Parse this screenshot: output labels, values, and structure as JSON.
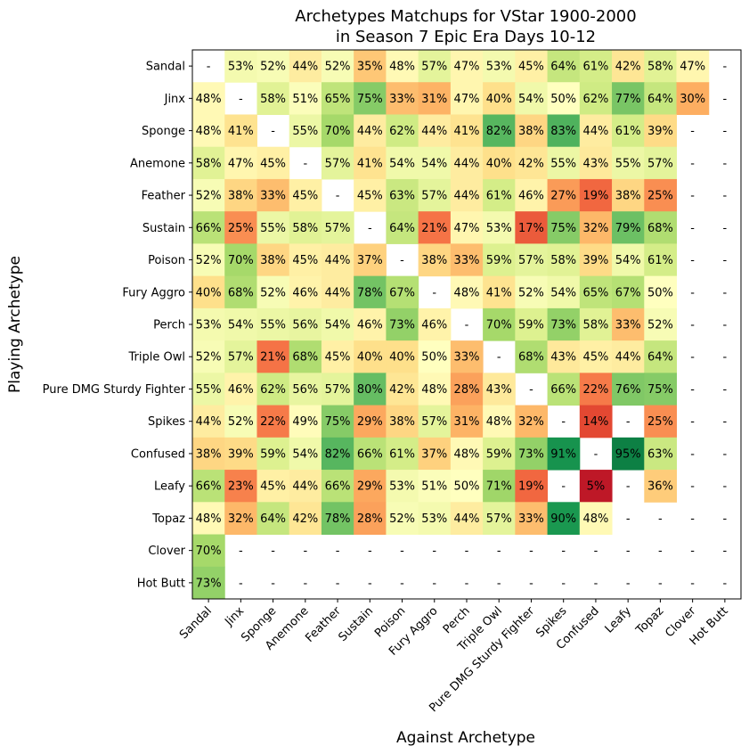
{
  "chart_data": {
    "type": "heatmap",
    "title": [
      "Archetypes Matchups for VStar 1900-2000",
      "in Season 7 Epic Era Days 10-12"
    ],
    "xlabel": "Against Archetype",
    "ylabel": "Playing Archetype",
    "rows": [
      "Sandal",
      "Jinx",
      "Sponge",
      "Anemone",
      "Feather",
      "Sustain",
      "Poison",
      "Fury Aggro",
      "Perch",
      "Triple Owl",
      "Pure DMG Sturdy Fighter",
      "Spikes",
      "Confused",
      "Leafy",
      "Topaz",
      "Clover",
      "Hot Butt"
    ],
    "columns": [
      "Sandal",
      "Jinx",
      "Sponge",
      "Anemone",
      "Feather",
      "Sustain",
      "Poison",
      "Fury Aggro",
      "Perch",
      "Triple Owl",
      "Pure DMG Sturdy Fighter",
      "Spikes",
      "Confused",
      "Leafy",
      "Topaz",
      "Clover",
      "Hot Butt"
    ],
    "value_unit": "%",
    "missing_label": "-",
    "colormap": "RdYlGn",
    "color_range": [
      0,
      100
    ],
    "values": [
      [
        null,
        53,
        52,
        44,
        52,
        35,
        48,
        57,
        47,
        53,
        45,
        64,
        61,
        42,
        58,
        47,
        null
      ],
      [
        48,
        null,
        58,
        51,
        65,
        75,
        33,
        31,
        47,
        40,
        54,
        50,
        62,
        77,
        64,
        30,
        null
      ],
      [
        48,
        41,
        null,
        55,
        70,
        44,
        62,
        44,
        41,
        82,
        38,
        83,
        44,
        61,
        39,
        null,
        null
      ],
      [
        58,
        47,
        45,
        null,
        57,
        41,
        54,
        54,
        44,
        40,
        42,
        55,
        43,
        55,
        57,
        null,
        null
      ],
      [
        52,
        38,
        33,
        45,
        null,
        45,
        63,
        57,
        44,
        61,
        46,
        27,
        19,
        38,
        25,
        null,
        null
      ],
      [
        66,
        25,
        55,
        58,
        57,
        null,
        64,
        21,
        47,
        53,
        17,
        75,
        32,
        79,
        68,
        null,
        null
      ],
      [
        52,
        70,
        38,
        45,
        44,
        37,
        null,
        38,
        33,
        59,
        57,
        58,
        39,
        54,
        61,
        null,
        null
      ],
      [
        40,
        68,
        52,
        46,
        44,
        78,
        67,
        null,
        48,
        41,
        52,
        54,
        65,
        67,
        50,
        null,
        null
      ],
      [
        53,
        54,
        55,
        56,
        54,
        46,
        73,
        46,
        null,
        70,
        59,
        73,
        58,
        33,
        52,
        null,
        null
      ],
      [
        52,
        57,
        21,
        68,
        45,
        40,
        40,
        50,
        33,
        null,
        68,
        43,
        45,
        44,
        64,
        null,
        null
      ],
      [
        55,
        46,
        62,
        56,
        57,
        80,
        42,
        48,
        28,
        43,
        null,
        66,
        22,
        76,
        75,
        null,
        null
      ],
      [
        44,
        52,
        22,
        49,
        75,
        29,
        38,
        57,
        31,
        48,
        32,
        null,
        14,
        null,
        25,
        null,
        null
      ],
      [
        38,
        39,
        59,
        54,
        82,
        66,
        61,
        37,
        48,
        59,
        73,
        91,
        null,
        95,
        63,
        null,
        null
      ],
      [
        66,
        23,
        45,
        44,
        66,
        29,
        53,
        51,
        50,
        71,
        19,
        null,
        5,
        null,
        36,
        null,
        null
      ],
      [
        48,
        32,
        64,
        42,
        78,
        28,
        52,
        53,
        44,
        57,
        33,
        90,
        48,
        null,
        null,
        null,
        null
      ],
      [
        70,
        null,
        null,
        null,
        null,
        null,
        null,
        null,
        null,
        null,
        null,
        null,
        null,
        null,
        null,
        null,
        null
      ],
      [
        73,
        null,
        null,
        null,
        null,
        null,
        null,
        null,
        null,
        null,
        null,
        null,
        null,
        null,
        null,
        null,
        null
      ]
    ]
  }
}
